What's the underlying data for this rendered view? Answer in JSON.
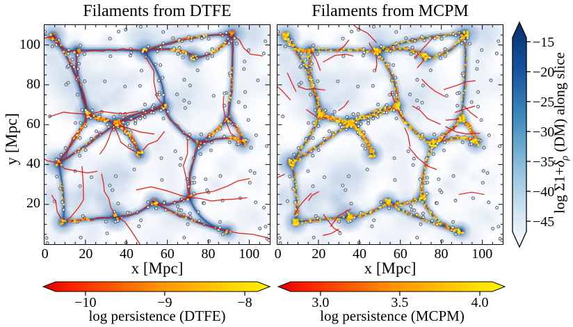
{
  "panels": [
    {
      "title": "Filaments from DTFE"
    },
    {
      "title": "Filaments from MCPM"
    }
  ],
  "x_axis": {
    "label": "x [Mpc]",
    "tick_labels": [
      "0",
      "20",
      "40",
      "60",
      "80",
      "100"
    ]
  },
  "y_axis": {
    "label": "y [Mpc]",
    "tick_labels": [
      "20",
      "40",
      "60",
      "80",
      "100"
    ]
  },
  "density_colorbar": {
    "label_parts": {
      "prefix": "log Σ1+",
      "symbol": "δ",
      "subscript": "ρ",
      "suffix": " (DM) along slice"
    },
    "label_plain": "log Σ1+δρ (DM) along slice",
    "tick_labels": [
      "−15",
      "−20",
      "−25",
      "−30",
      "−35",
      "−40",
      "−45"
    ],
    "tick_values": [
      -15,
      -20,
      -25,
      -30,
      -35,
      -40,
      -45
    ],
    "color_top": "#08306b",
    "color_bottom": "#fbfdff"
  },
  "persistence_colorbars": [
    {
      "label": "log persistence (DTFE)",
      "tick_labels": [
        "−10",
        "−9",
        "−8"
      ],
      "tick_values": [
        -10,
        -9,
        -8
      ],
      "color_left": "#d80000",
      "color_right": "#fff300"
    },
    {
      "label": "log persistence (MCPM)",
      "tick_labels": [
        "3.0",
        "3.5",
        "4.0"
      ],
      "tick_values": [
        3.0,
        3.5,
        4.0
      ],
      "color_left": "#d80000",
      "color_right": "#fff300"
    }
  ],
  "map_colors": {
    "void": "#fcfdff",
    "filament_field": "#2e64a8",
    "knot": "#08306b",
    "dtfe_spine": "#dd1508",
    "high_persistence_dot": "#ffe000",
    "galaxy_marker_outline": "#3a4750"
  },
  "chart_data": [
    {
      "type": "heatmap",
      "title": "Filaments from DTFE",
      "xlabel": "x [Mpc]",
      "ylabel": "y [Mpc]",
      "xlim": [
        0,
        110
      ],
      "ylim": [
        0,
        110
      ],
      "x_ticks": [
        0,
        20,
        40,
        60,
        80,
        100
      ],
      "y_ticks": [
        20,
        40,
        60,
        80,
        100
      ],
      "minor_tick_step": 5,
      "field": "dark-matter overdensity slice, Blues colormap (white voids to dark-blue knots)",
      "overlays": [
        "thin red curves: DTFE filament spines extending into voids",
        "orange-to-yellow dots along dense ridges: filament points colored by log persistence (-10 to -8)",
        "small gray-outlined circles: galaxies in the slice"
      ]
    },
    {
      "type": "heatmap",
      "title": "Filaments from MCPM",
      "xlabel": "x [Mpc]",
      "ylabel": "y [Mpc]",
      "xlim": [
        0,
        110
      ],
      "ylim": [
        0,
        110
      ],
      "x_ticks": [
        0,
        20,
        40,
        60,
        80,
        100
      ],
      "y_ticks": [
        20,
        40,
        60,
        80,
        100
      ],
      "minor_tick_step": 5,
      "field": "same dark-matter overdensity slice, Blues colormap",
      "overlays": [
        "dense yellow/orange dotted chains tracing the web: MCPM filament points colored by log persistence (3.0 to 4.0)",
        "short red segments: low-persistence filament stubs",
        "small gray-outlined circles: galaxies in the slice"
      ]
    },
    {
      "type": "colorbar",
      "orientation": "vertical",
      "label": "log Σ1+δρ (DM) along slice",
      "tick_values": [
        -15,
        -20,
        -25,
        -30,
        -35,
        -40,
        -45
      ],
      "colormap": "Blues, dark navy at top to white at bottom",
      "extend": "both"
    },
    {
      "type": "colorbar",
      "orientation": "horizontal",
      "label": "log persistence (DTFE)",
      "tick_values": [
        -10,
        -9,
        -8
      ],
      "colormap": "red to orange to yellow",
      "extend": "both"
    },
    {
      "type": "colorbar",
      "orientation": "horizontal",
      "label": "log persistence (MCPM)",
      "tick_values": [
        3.0,
        3.5,
        4.0
      ],
      "colormap": "red to orange to yellow",
      "extend": "both"
    }
  ]
}
